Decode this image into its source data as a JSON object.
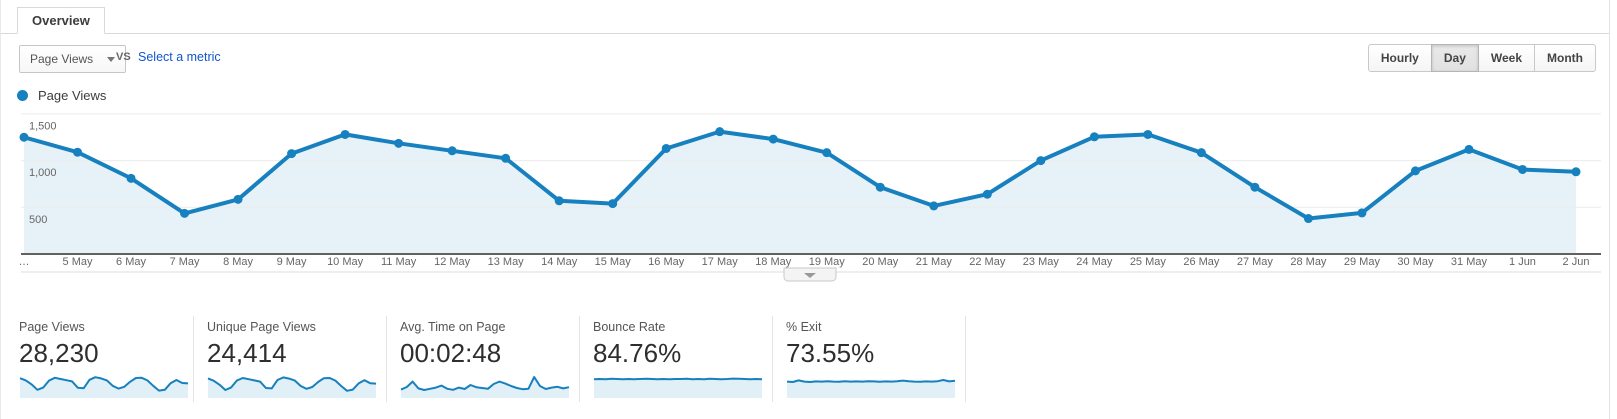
{
  "tab": {
    "label": "Overview"
  },
  "toolbar": {
    "metric_selector": {
      "value": "Page Views"
    },
    "vs_label": "VS",
    "select_metric_label": "Select a metric",
    "granularity": {
      "options": [
        "Hourly",
        "Day",
        "Week",
        "Month"
      ],
      "selected": "Day"
    }
  },
  "legend": {
    "series": "Page Views"
  },
  "chart_data": {
    "type": "line",
    "series": [
      {
        "name": "Page Views",
        "values": [
          1250,
          1090,
          810,
          435,
          585,
          1075,
          1280,
          1185,
          1105,
          1025,
          570,
          540,
          1130,
          1310,
          1230,
          1085,
          715,
          515,
          640,
          1000,
          1255,
          1280,
          1085,
          715,
          380,
          440,
          890,
          1120,
          905,
          880
        ]
      }
    ],
    "x": [
      "…",
      "5 May",
      "6 May",
      "7 May",
      "8 May",
      "9 May",
      "10 May",
      "11 May",
      "12 May",
      "13 May",
      "14 May",
      "15 May",
      "16 May",
      "17 May",
      "18 May",
      "19 May",
      "20 May",
      "21 May",
      "22 May",
      "23 May",
      "24 May",
      "25 May",
      "26 May",
      "27 May",
      "28 May",
      "29 May",
      "30 May",
      "31 May",
      "1 Jun",
      "2 Jun"
    ],
    "yticks": [
      500,
      1000,
      1500
    ],
    "ylim": [
      0,
      1550
    ],
    "grid": true,
    "legend_position": "top-left"
  },
  "summary_cards": [
    {
      "label": "Page Views",
      "value": "28,230",
      "spark": [
        0.89,
        0.78,
        0.58,
        0.31,
        0.42,
        0.77,
        0.91,
        0.85,
        0.79,
        0.73,
        0.41,
        0.39,
        0.81,
        0.94,
        0.88,
        0.78,
        0.51,
        0.37,
        0.46,
        0.71,
        0.9,
        0.91,
        0.78,
        0.51,
        0.27,
        0.31,
        0.64,
        0.8,
        0.65,
        0.63
      ]
    },
    {
      "label": "Unique Page Views",
      "value": "24,414",
      "spark": [
        0.88,
        0.76,
        0.56,
        0.3,
        0.43,
        0.78,
        0.9,
        0.84,
        0.78,
        0.72,
        0.4,
        0.38,
        0.8,
        0.93,
        0.87,
        0.77,
        0.5,
        0.36,
        0.45,
        0.7,
        0.89,
        0.9,
        0.77,
        0.5,
        0.26,
        0.32,
        0.63,
        0.79,
        0.64,
        0.62
      ]
    },
    {
      "label": "Avg. Time on Page",
      "value": "00:02:48",
      "spark": [
        0.32,
        0.45,
        0.72,
        0.38,
        0.3,
        0.36,
        0.42,
        0.52,
        0.36,
        0.31,
        0.42,
        0.35,
        0.55,
        0.44,
        0.4,
        0.36,
        0.6,
        0.72,
        0.62,
        0.5,
        0.4,
        0.34,
        0.36,
        0.95,
        0.5,
        0.35,
        0.42,
        0.46,
        0.38,
        0.44
      ]
    },
    {
      "label": "Bounce Rate",
      "value": "84.76%",
      "spark": [
        0.84,
        0.85,
        0.84,
        0.86,
        0.85,
        0.84,
        0.85,
        0.84,
        0.85,
        0.86,
        0.85,
        0.84,
        0.85,
        0.84,
        0.85,
        0.85,
        0.86,
        0.84,
        0.85,
        0.84,
        0.86,
        0.85,
        0.84,
        0.85,
        0.87,
        0.86,
        0.85,
        0.84,
        0.85,
        0.84
      ]
    },
    {
      "label": "% Exit",
      "value": "73.55%",
      "spark": [
        0.72,
        0.7,
        0.78,
        0.72,
        0.7,
        0.73,
        0.72,
        0.74,
        0.72,
        0.71,
        0.74,
        0.72,
        0.73,
        0.72,
        0.74,
        0.73,
        0.71,
        0.73,
        0.72,
        0.74,
        0.77,
        0.74,
        0.72,
        0.71,
        0.73,
        0.72,
        0.74,
        0.8,
        0.73,
        0.76
      ]
    }
  ],
  "colors": {
    "accent_blue": "#1780bf",
    "area_fill": "rgba(23,128,191,0.10)",
    "spark_fill": "rgba(23,128,191,0.13)",
    "link_blue": "#1155cc",
    "grid_line": "#ececec",
    "axis_line": "#616161",
    "muted_text": "#666666"
  }
}
